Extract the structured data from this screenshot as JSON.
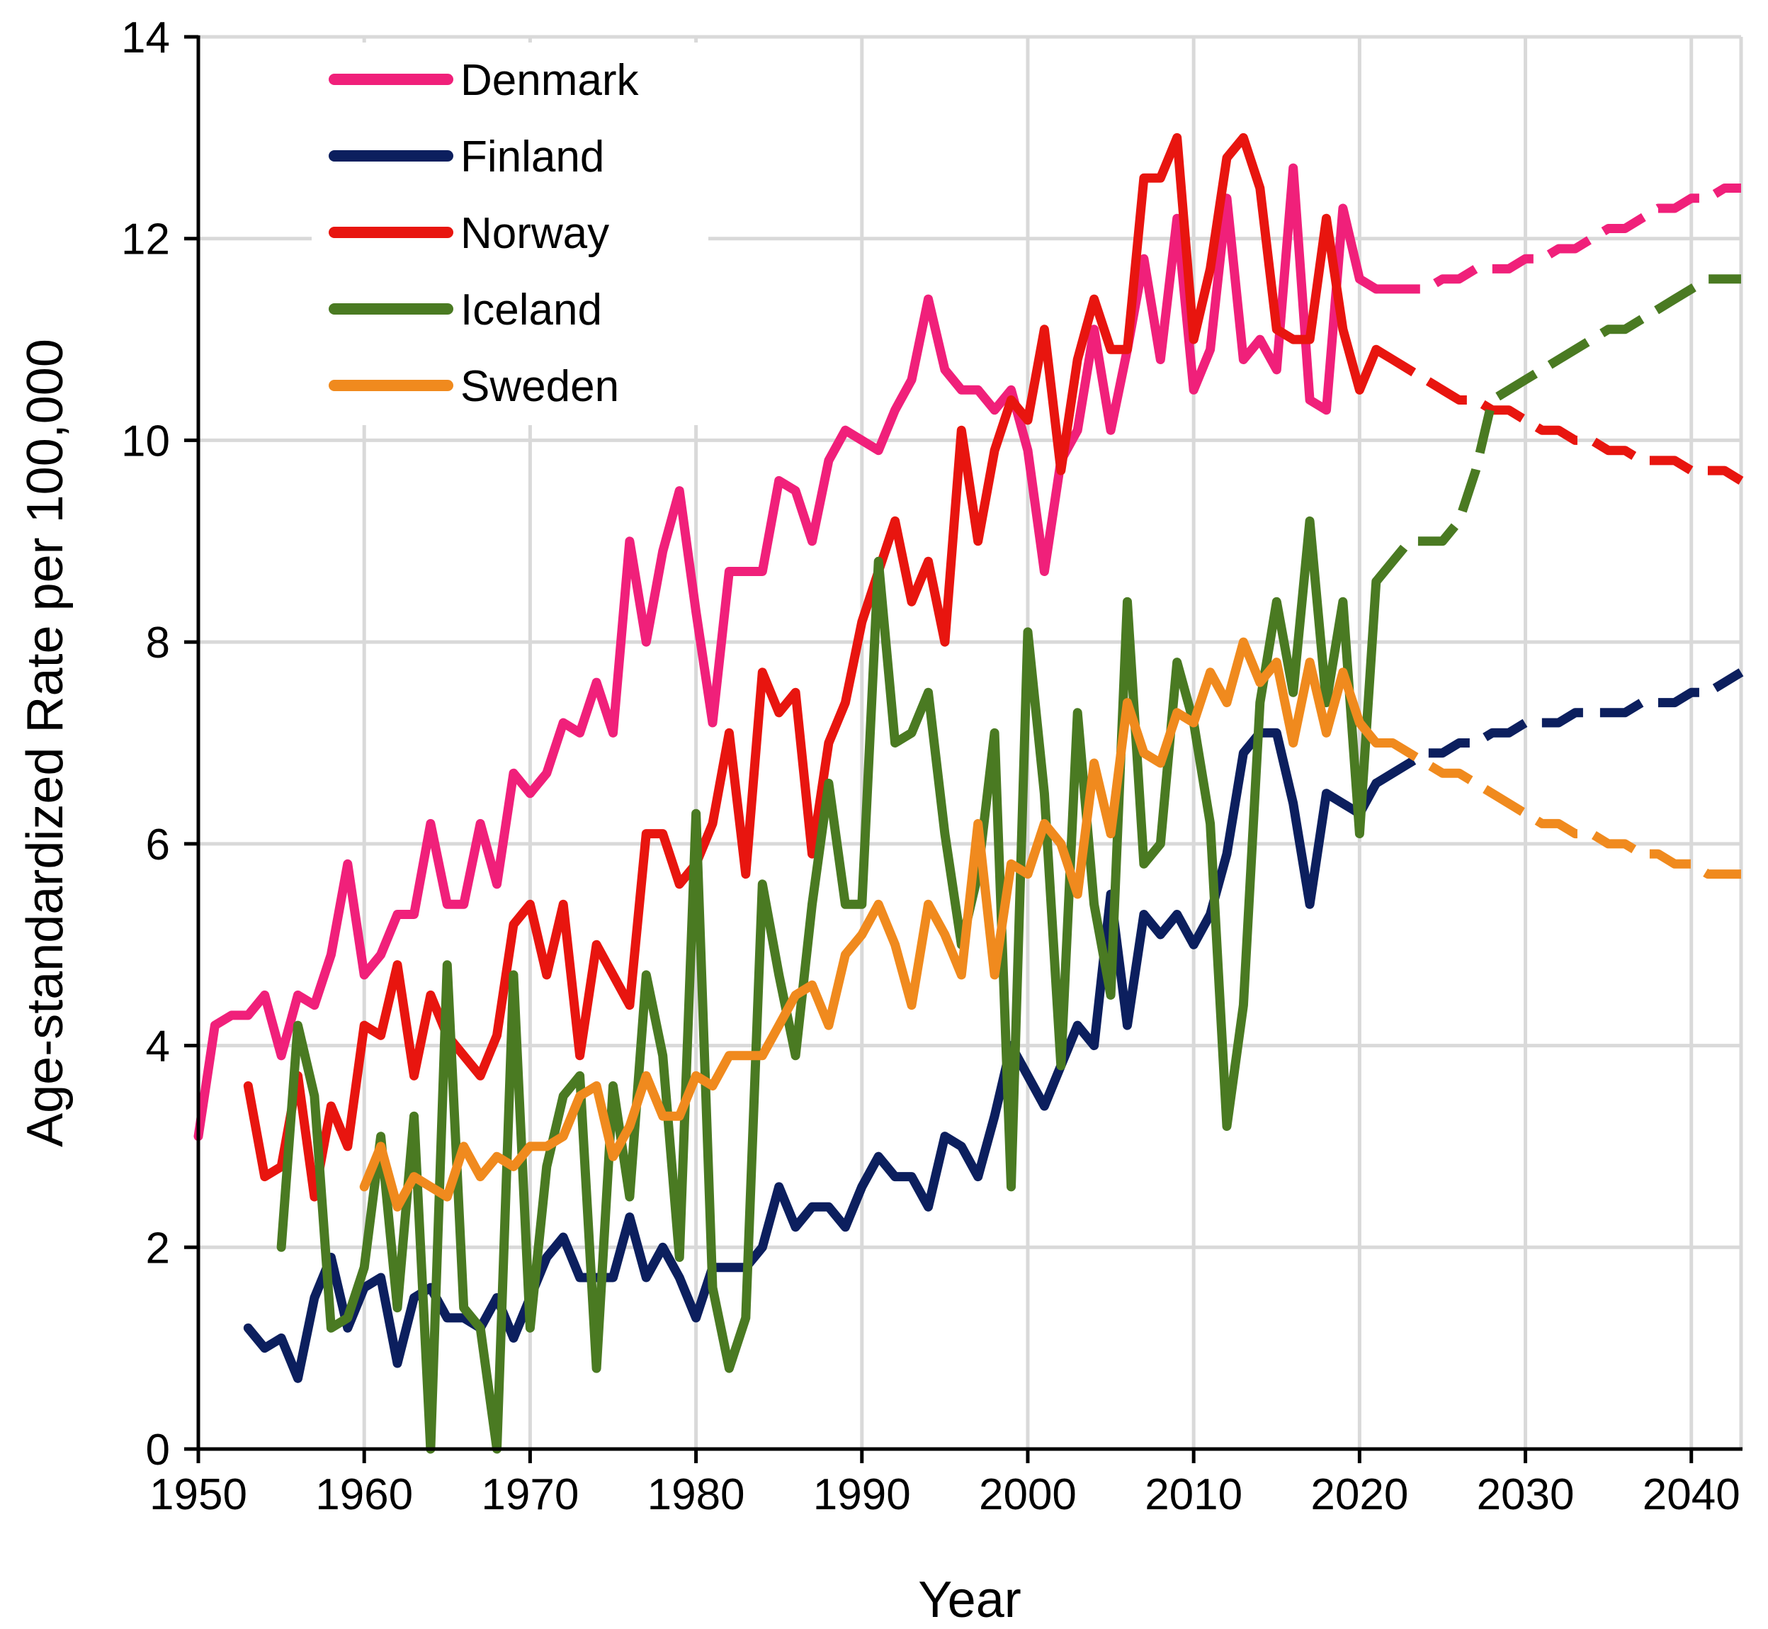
{
  "chart_data": {
    "type": "line",
    "title": "",
    "xlabel": "Year",
    "ylabel": "Age-standardized Rate per 100,000",
    "xlim": [
      1950,
      2043
    ],
    "ylim": [
      0,
      14
    ],
    "xticks": [
      1950,
      1960,
      1970,
      1980,
      1990,
      2000,
      2010,
      2020,
      2030,
      2040
    ],
    "yticks": [
      0,
      2,
      4,
      6,
      8,
      10,
      12,
      14
    ],
    "grid": true,
    "legend_position": "top-left",
    "projection_start_year": 2021,
    "projection_style": "dashed",
    "series": [
      {
        "name": "Denmark",
        "color": "#f0207a",
        "x": [
          1950,
          1951,
          1952,
          1953,
          1954,
          1955,
          1956,
          1957,
          1958,
          1959,
          1960,
          1961,
          1962,
          1963,
          1964,
          1965,
          1966,
          1967,
          1968,
          1969,
          1970,
          1971,
          1972,
          1973,
          1974,
          1975,
          1976,
          1977,
          1978,
          1979,
          1980,
          1981,
          1982,
          1983,
          1984,
          1985,
          1986,
          1987,
          1988,
          1989,
          1990,
          1991,
          1992,
          1993,
          1994,
          1995,
          1996,
          1997,
          1998,
          1999,
          2000,
          2001,
          2002,
          2003,
          2004,
          2005,
          2006,
          2007,
          2008,
          2009,
          2010,
          2011,
          2012,
          2013,
          2014,
          2015,
          2016,
          2017,
          2018,
          2019,
          2020,
          2021,
          2022,
          2023,
          2024,
          2025,
          2026,
          2027,
          2028,
          2029,
          2030,
          2031,
          2032,
          2033,
          2034,
          2035,
          2036,
          2037,
          2038,
          2039,
          2040,
          2041,
          2042,
          2043
        ],
        "values": [
          3.1,
          4.2,
          4.3,
          4.3,
          4.5,
          3.9,
          4.5,
          4.4,
          4.9,
          5.8,
          4.7,
          4.9,
          5.3,
          5.3,
          6.2,
          5.4,
          5.4,
          6.2,
          5.6,
          6.7,
          6.5,
          6.7,
          7.2,
          7.1,
          7.6,
          7.1,
          9.0,
          8.0,
          8.9,
          9.5,
          8.3,
          7.2,
          8.7,
          8.7,
          8.7,
          9.6,
          9.5,
          9.0,
          9.8,
          10.1,
          10.0,
          9.9,
          10.3,
          10.6,
          11.4,
          10.7,
          10.5,
          10.5,
          10.3,
          10.5,
          9.9,
          8.7,
          9.8,
          10.1,
          11.1,
          10.1,
          10.9,
          11.8,
          10.8,
          12.2,
          10.5,
          10.9,
          12.4,
          10.8,
          11.0,
          10.7,
          12.7,
          10.4,
          10.3,
          12.3,
          11.6,
          11.5,
          11.5,
          11.5,
          11.5,
          11.6,
          11.6,
          11.7,
          11.7,
          11.7,
          11.8,
          11.8,
          11.9,
          11.9,
          12.0,
          12.1,
          12.1,
          12.2,
          12.3,
          12.3,
          12.4,
          12.4,
          12.5,
          12.5
        ]
      },
      {
        "name": "Finland",
        "color": "#0c1f5e",
        "x": [
          1953,
          1954,
          1955,
          1956,
          1957,
          1958,
          1959,
          1960,
          1961,
          1962,
          1963,
          1964,
          1965,
          1966,
          1967,
          1968,
          1969,
          1970,
          1971,
          1972,
          1973,
          1974,
          1975,
          1976,
          1977,
          1978,
          1979,
          1980,
          1981,
          1982,
          1983,
          1984,
          1985,
          1986,
          1987,
          1988,
          1989,
          1990,
          1991,
          1992,
          1993,
          1994,
          1995,
          1996,
          1997,
          1998,
          1999,
          2000,
          2001,
          2002,
          2003,
          2004,
          2005,
          2006,
          2007,
          2008,
          2009,
          2010,
          2011,
          2012,
          2013,
          2014,
          2015,
          2016,
          2017,
          2018,
          2019,
          2020,
          2021,
          2022,
          2023,
          2024,
          2025,
          2026,
          2027,
          2028,
          2029,
          2030,
          2031,
          2032,
          2033,
          2034,
          2035,
          2036,
          2037,
          2038,
          2039,
          2040,
          2041,
          2042,
          2043
        ],
        "values": [
          1.2,
          1.0,
          1.1,
          0.7,
          1.5,
          1.9,
          1.2,
          1.6,
          1.7,
          0.85,
          1.5,
          1.6,
          1.3,
          1.3,
          1.2,
          1.5,
          1.1,
          1.5,
          1.9,
          2.1,
          1.7,
          1.7,
          1.7,
          2.3,
          1.7,
          2.0,
          1.7,
          1.3,
          1.8,
          1.8,
          1.8,
          2.0,
          2.6,
          2.2,
          2.4,
          2.4,
          2.2,
          2.6,
          2.9,
          2.7,
          2.7,
          2.4,
          3.1,
          3.0,
          2.7,
          3.3,
          4.0,
          3.7,
          3.4,
          3.8,
          4.2,
          4.0,
          5.5,
          4.2,
          5.3,
          5.1,
          5.3,
          5.0,
          5.3,
          5.9,
          6.9,
          7.1,
          7.1,
          6.4,
          5.4,
          6.5,
          6.4,
          6.3,
          6.6,
          6.7,
          6.8,
          6.9,
          6.9,
          7.0,
          7.0,
          7.1,
          7.1,
          7.2,
          7.2,
          7.2,
          7.3,
          7.3,
          7.3,
          7.3,
          7.4,
          7.4,
          7.4,
          7.5,
          7.5,
          7.6,
          7.7
        ]
      },
      {
        "name": "Norway",
        "color": "#e8150f",
        "x": [
          1953,
          1954,
          1955,
          1956,
          1957,
          1958,
          1959,
          1960,
          1961,
          1962,
          1963,
          1964,
          1965,
          1966,
          1967,
          1968,
          1969,
          1970,
          1971,
          1972,
          1973,
          1974,
          1975,
          1976,
          1977,
          1978,
          1979,
          1980,
          1981,
          1982,
          1983,
          1984,
          1985,
          1986,
          1987,
          1988,
          1989,
          1990,
          1991,
          1992,
          1993,
          1994,
          1995,
          1996,
          1997,
          1998,
          1999,
          2000,
          2001,
          2002,
          2003,
          2004,
          2005,
          2006,
          2007,
          2008,
          2009,
          2010,
          2011,
          2012,
          2013,
          2014,
          2015,
          2016,
          2017,
          2018,
          2019,
          2020,
          2021,
          2022,
          2023,
          2024,
          2025,
          2026,
          2027,
          2028,
          2029,
          2030,
          2031,
          2032,
          2033,
          2034,
          2035,
          2036,
          2037,
          2038,
          2039,
          2040,
          2041,
          2042,
          2043
        ],
        "values": [
          3.6,
          2.7,
          2.8,
          3.7,
          2.5,
          3.4,
          3.0,
          4.2,
          4.1,
          4.8,
          3.7,
          4.5,
          4.1,
          3.9,
          3.7,
          4.1,
          5.2,
          5.4,
          4.7,
          5.4,
          3.9,
          5.0,
          4.7,
          4.4,
          6.1,
          6.1,
          5.6,
          5.8,
          6.2,
          7.1,
          5.7,
          7.7,
          7.3,
          7.5,
          5.9,
          7.0,
          7.4,
          8.2,
          8.7,
          9.2,
          8.4,
          8.8,
          8.0,
          10.1,
          9.0,
          9.9,
          10.4,
          10.2,
          11.1,
          9.7,
          10.8,
          11.4,
          10.9,
          10.9,
          12.6,
          12.6,
          13.0,
          11.0,
          11.7,
          12.8,
          13.0,
          12.5,
          11.1,
          11.0,
          11.0,
          12.2,
          11.1,
          10.5,
          10.9,
          10.8,
          10.7,
          10.6,
          10.5,
          10.4,
          10.4,
          10.3,
          10.3,
          10.2,
          10.1,
          10.1,
          10.0,
          10.0,
          9.9,
          9.9,
          9.8,
          9.8,
          9.8,
          9.7,
          9.7,
          9.7,
          9.6
        ]
      },
      {
        "name": "Iceland",
        "color": "#4a7a22",
        "x": [
          1955,
          1956,
          1957,
          1958,
          1959,
          1960,
          1961,
          1962,
          1963,
          1964,
          1965,
          1966,
          1967,
          1968,
          1969,
          1970,
          1971,
          1972,
          1973,
          1974,
          1975,
          1976,
          1977,
          1978,
          1979,
          1980,
          1981,
          1982,
          1983,
          1984,
          1985,
          1986,
          1987,
          1988,
          1989,
          1990,
          1991,
          1992,
          1993,
          1994,
          1995,
          1996,
          1997,
          1998,
          1999,
          2000,
          2001,
          2002,
          2003,
          2004,
          2005,
          2006,
          2007,
          2008,
          2009,
          2010,
          2011,
          2012,
          2013,
          2014,
          2015,
          2016,
          2017,
          2018,
          2019,
          2020,
          2021,
          2022,
          2023,
          2024,
          2025,
          2026,
          2027,
          2028,
          2029,
          2030,
          2031,
          2032,
          2033,
          2034,
          2035,
          2036,
          2037,
          2038,
          2039,
          2040,
          2041,
          2042,
          2043
        ],
        "values": [
          2.0,
          4.2,
          3.5,
          1.2,
          1.3,
          1.8,
          3.1,
          1.4,
          3.3,
          0.0,
          4.8,
          1.4,
          1.2,
          0.0,
          4.7,
          1.2,
          2.8,
          3.5,
          3.7,
          0.8,
          3.6,
          2.5,
          4.7,
          3.9,
          1.9,
          6.3,
          1.6,
          0.8,
          1.3,
          5.6,
          4.7,
          3.9,
          5.4,
          6.6,
          5.4,
          5.4,
          8.8,
          7.0,
          7.1,
          7.5,
          6.1,
          5.0,
          5.7,
          7.1,
          2.6,
          8.1,
          6.5,
          3.8,
          7.3,
          5.4,
          4.5,
          8.4,
          5.8,
          6.0,
          7.8,
          7.2,
          6.2,
          3.2,
          4.4,
          7.4,
          8.4,
          7.5,
          9.2,
          7.4,
          8.4,
          6.1,
          8.6,
          8.8,
          9.0,
          9.0,
          9.0,
          9.2,
          9.7,
          10.4,
          10.5,
          10.6,
          10.7,
          10.8,
          10.9,
          11.0,
          11.1,
          11.1,
          11.2,
          11.3,
          11.4,
          11.5,
          11.6,
          11.6,
          11.6
        ]
      },
      {
        "name": "Sweden",
        "color": "#f08a1e",
        "x": [
          1960,
          1961,
          1962,
          1963,
          1964,
          1965,
          1966,
          1967,
          1968,
          1969,
          1970,
          1971,
          1972,
          1973,
          1974,
          1975,
          1976,
          1977,
          1978,
          1979,
          1980,
          1981,
          1982,
          1983,
          1984,
          1985,
          1986,
          1987,
          1988,
          1989,
          1990,
          1991,
          1992,
          1993,
          1994,
          1995,
          1996,
          1997,
          1998,
          1999,
          2000,
          2001,
          2002,
          2003,
          2004,
          2005,
          2006,
          2007,
          2008,
          2009,
          2010,
          2011,
          2012,
          2013,
          2014,
          2015,
          2016,
          2017,
          2018,
          2019,
          2020,
          2021,
          2022,
          2023,
          2024,
          2025,
          2026,
          2027,
          2028,
          2029,
          2030,
          2031,
          2032,
          2033,
          2034,
          2035,
          2036,
          2037,
          2038,
          2039,
          2040,
          2041,
          2042,
          2043
        ],
        "values": [
          2.6,
          3.0,
          2.4,
          2.7,
          2.6,
          2.5,
          3.0,
          2.7,
          2.9,
          2.8,
          3.0,
          3.0,
          3.1,
          3.5,
          3.6,
          2.9,
          3.2,
          3.7,
          3.3,
          3.3,
          3.7,
          3.6,
          3.9,
          3.9,
          3.9,
          4.2,
          4.5,
          4.6,
          4.2,
          4.9,
          5.1,
          5.4,
          5.0,
          4.4,
          5.4,
          5.1,
          4.7,
          6.2,
          4.7,
          5.8,
          5.7,
          6.2,
          6.0,
          5.5,
          6.8,
          6.1,
          7.4,
          6.9,
          6.8,
          7.3,
          7.2,
          7.7,
          7.4,
          8.0,
          7.6,
          7.8,
          7.0,
          7.8,
          7.1,
          7.7,
          7.2,
          7.0,
          7.0,
          6.9,
          6.8,
          6.7,
          6.7,
          6.6,
          6.5,
          6.4,
          6.3,
          6.2,
          6.2,
          6.1,
          6.1,
          6.0,
          6.0,
          5.9,
          5.9,
          5.8,
          5.8,
          5.7,
          5.7,
          5.7
        ]
      }
    ]
  }
}
